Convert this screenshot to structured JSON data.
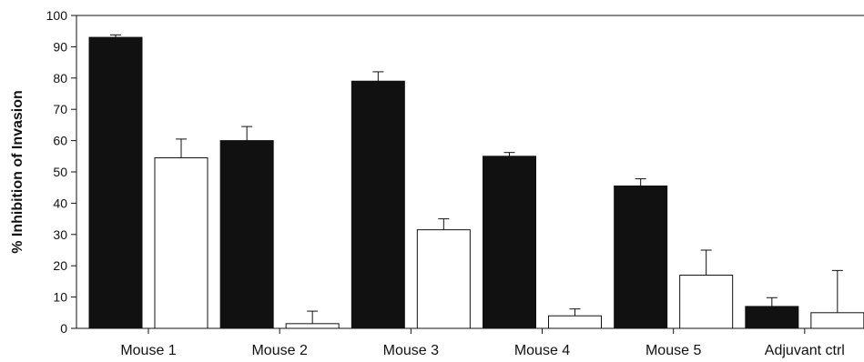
{
  "chart_data": {
    "type": "bar",
    "title": "",
    "xlabel": "",
    "ylabel": "% Inhibition of Invasion",
    "ylim": [
      0,
      100
    ],
    "yticks": [
      0,
      10,
      20,
      30,
      40,
      50,
      60,
      70,
      80,
      90,
      100
    ],
    "grid": false,
    "legend": "none",
    "categories": [
      "Mouse 1",
      "Mouse 2",
      "Mouse 3",
      "Mouse 4",
      "Mouse 5",
      "Adjuvant ctrl"
    ],
    "series": [
      {
        "color": "#111111",
        "values": [
          93,
          60,
          79,
          55,
          45.5,
          7
        ],
        "errors": [
          0.8,
          4.5,
          3,
          1.2,
          2.3,
          2.8
        ]
      },
      {
        "color": "#ffffff",
        "values": [
          54.5,
          1.5,
          31.5,
          4,
          17,
          5
        ],
        "errors": [
          6,
          4,
          3.5,
          2.2,
          8,
          13.5
        ]
      }
    ]
  }
}
